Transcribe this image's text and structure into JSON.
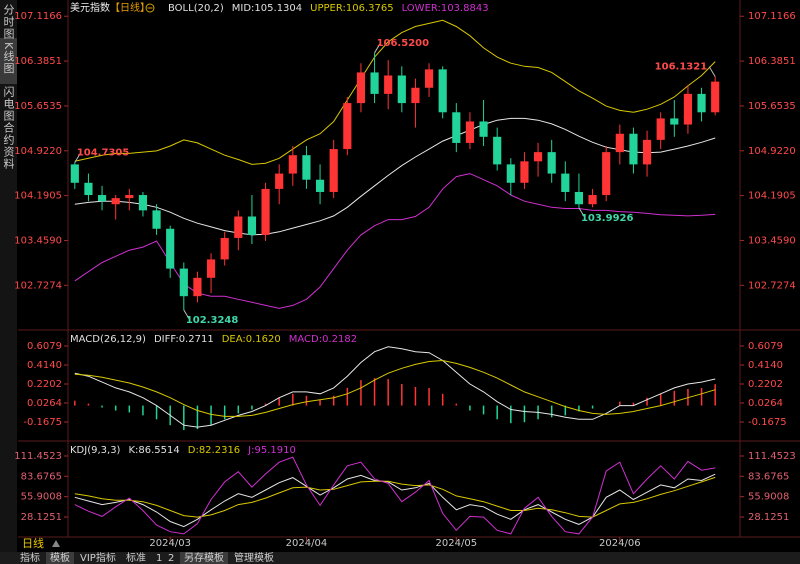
{
  "sidebar": [
    "分时图",
    "K线图",
    "闪电图",
    "合约资料"
  ],
  "footer": {
    "period": "日线",
    "tabs": [
      "指标",
      "模板",
      "VIP指标",
      "标准",
      "1",
      "2",
      "另存模板",
      "管理模板"
    ]
  },
  "chart_data": [
    {
      "type": "candlestick",
      "title": "美元指数",
      "period": "【日线】",
      "legend": [
        {
          "text": "BOLL(20,2)",
          "color": "#e0e0e0"
        },
        {
          "text": "MID:105.1304",
          "color": "#e0e0e0"
        },
        {
          "text": "UPPER:106.3765",
          "color": "#d8c800"
        },
        {
          "text": "LOWER:103.8843",
          "color": "#d030d0"
        }
      ],
      "up_color": "#ff3434",
      "down_color": "#22d39a",
      "ylim": [
        102.08,
        107.3
      ],
      "yticks": [
        107.1166,
        106.3851,
        105.6535,
        {
          "value": 104.922,
          "label": "104.9220"
        },
        104.1905,
        {
          "value": 103.459,
          "label": "103.4590"
        },
        102.7274
      ],
      "candles": [
        [
          104.7,
          104.7305,
          104.3,
          104.4
        ],
        [
          104.4,
          104.55,
          104.1,
          104.2
        ],
        [
          104.2,
          104.35,
          103.95,
          104.1
        ],
        [
          104.05,
          104.2,
          103.8,
          104.15
        ],
        [
          104.15,
          104.3,
          103.95,
          104.2
        ],
        [
          104.2,
          104.25,
          103.85,
          103.95
        ],
        [
          103.95,
          104.05,
          103.55,
          103.65
        ],
        [
          103.65,
          103.7,
          102.85,
          103.0
        ],
        [
          103.0,
          103.1,
          102.3248,
          102.55
        ],
        [
          102.55,
          102.95,
          102.45,
          102.85
        ],
        [
          102.85,
          103.25,
          102.6,
          103.15
        ],
        [
          103.15,
          103.6,
          103.05,
          103.5
        ],
        [
          103.5,
          103.95,
          103.3,
          103.85
        ],
        [
          103.85,
          104.2,
          103.4,
          103.55
        ],
        [
          103.55,
          104.4,
          103.45,
          104.3
        ],
        [
          104.3,
          104.7,
          104.05,
          104.55
        ],
        [
          104.55,
          105.0,
          104.35,
          104.85
        ],
        [
          104.85,
          105.0,
          104.3,
          104.45
        ],
        [
          104.45,
          104.7,
          104.05,
          104.25
        ],
        [
          104.25,
          105.1,
          104.15,
          104.95
        ],
        [
          104.95,
          105.8,
          104.85,
          105.7
        ],
        [
          105.7,
          106.35,
          105.55,
          106.2
        ],
        [
          106.2,
          106.52,
          105.7,
          105.85
        ],
        [
          105.85,
          106.4,
          105.6,
          106.15
        ],
        [
          106.15,
          106.3,
          105.55,
          105.7
        ],
        [
          105.7,
          106.1,
          105.3,
          105.95
        ],
        [
          105.95,
          106.35,
          105.8,
          106.25
        ],
        [
          106.25,
          106.3,
          105.45,
          105.55
        ],
        [
          105.55,
          105.7,
          104.9,
          105.05
        ],
        [
          105.05,
          105.55,
          104.95,
          105.4
        ],
        [
          105.4,
          105.75,
          105.0,
          105.15
        ],
        [
          105.15,
          105.3,
          104.6,
          104.7
        ],
        [
          104.7,
          104.8,
          104.2,
          104.4
        ],
        [
          104.4,
          104.9,
          104.3,
          104.75
        ],
        [
          104.75,
          105.05,
          104.5,
          104.9
        ],
        [
          104.9,
          105.1,
          104.4,
          104.55
        ],
        [
          104.55,
          104.75,
          104.1,
          104.25
        ],
        [
          104.25,
          104.55,
          103.9926,
          104.05
        ],
        [
          104.05,
          104.3,
          104.0,
          104.2
        ],
        [
          104.2,
          105.0,
          104.1,
          104.9
        ],
        [
          104.9,
          105.35,
          104.7,
          105.2
        ],
        [
          105.2,
          105.3,
          104.55,
          104.7
        ],
        [
          104.7,
          105.25,
          104.5,
          105.1
        ],
        [
          105.1,
          105.55,
          104.95,
          105.45
        ],
        [
          105.45,
          105.75,
          105.15,
          105.35
        ],
        [
          105.35,
          106.0,
          105.2,
          105.85
        ],
        [
          105.85,
          105.95,
          105.4,
          105.55
        ],
        [
          105.55,
          106.1321,
          105.5,
          106.05
        ]
      ],
      "series": [
        {
          "color": "#e6e6e6",
          "values": [
            104.05,
            104.08,
            104.1,
            104.1,
            104.08,
            104.05,
            104.0,
            103.92,
            103.82,
            103.74,
            103.68,
            103.62,
            103.58,
            103.55,
            103.56,
            103.6,
            103.66,
            103.72,
            103.78,
            103.86,
            104.0,
            104.18,
            104.35,
            104.52,
            104.68,
            104.82,
            104.95,
            105.08,
            105.17,
            105.26,
            105.35,
            105.42,
            105.45,
            105.45,
            105.42,
            105.36,
            105.27,
            105.16,
            105.06,
            104.98,
            104.94,
            104.9,
            104.89,
            104.9,
            104.95,
            105.0,
            105.06,
            105.1304
          ]
        },
        {
          "color": "#d8c800",
          "values": [
            104.75,
            104.8,
            104.85,
            104.88,
            104.88,
            104.9,
            104.92,
            105.0,
            105.1,
            105.05,
            104.95,
            104.85,
            104.78,
            104.7,
            104.72,
            104.8,
            104.95,
            105.1,
            105.2,
            105.4,
            105.75,
            106.1,
            106.45,
            106.7,
            106.85,
            106.95,
            107.0,
            107.05,
            106.95,
            106.8,
            106.6,
            106.45,
            106.35,
            106.3,
            106.28,
            106.2,
            106.05,
            105.9,
            105.78,
            105.65,
            105.58,
            105.55,
            105.6,
            105.68,
            105.8,
            105.98,
            106.15,
            106.3765
          ]
        },
        {
          "color": "#d030d0",
          "values": [
            102.8,
            102.95,
            103.1,
            103.2,
            103.3,
            103.35,
            103.45,
            103.1,
            102.75,
            102.6,
            102.55,
            102.55,
            102.5,
            102.45,
            102.4,
            102.35,
            102.4,
            102.5,
            102.7,
            103.0,
            103.3,
            103.55,
            103.7,
            103.8,
            103.8,
            103.85,
            104.0,
            104.3,
            104.5,
            104.55,
            104.45,
            104.35,
            104.2,
            104.1,
            104.05,
            104.0,
            103.98,
            103.98,
            103.95,
            103.95,
            103.93,
            103.92,
            103.9,
            103.88,
            103.87,
            103.86,
            103.87,
            103.8843
          ]
        }
      ],
      "annotations": [
        {
          "value": 104.7305,
          "label": "104.7305"
        },
        {
          "value": 102.3248,
          "label": "102.3248"
        },
        {
          "value": 106.52,
          "label": "106.5200"
        },
        {
          "value": 103.9926,
          "label": "103.9926"
        },
        {
          "value": 106.1321,
          "label": "106.1321"
        }
      ]
    },
    {
      "type": "macd",
      "legend": [
        {
          "text": "MACD(26,12,9)",
          "color": "#e0e0e0"
        },
        {
          "text": "DIFF:0.2711",
          "color": "#e0e0e0"
        },
        {
          "text": "DEA:0.1620",
          "color": "#d8c800"
        },
        {
          "text": "MACD:0.2182",
          "color": "#d030d0"
        }
      ],
      "up_color": "#ff3434",
      "down_color": "#22d39a",
      "ylim": [
        -0.3512,
        0.7508
      ],
      "yticks": [
        0.6079,
        {
          "value": 0.414,
          "label": "0.4140"
        },
        0.2202,
        0.0264,
        -0.1675
      ],
      "bars": [
        0.05,
        0.02,
        -0.02,
        -0.05,
        -0.07,
        -0.1,
        -0.14,
        -0.2,
        -0.25,
        -0.24,
        -0.2,
        -0.14,
        -0.08,
        -0.04,
        0.02,
        0.08,
        0.12,
        0.1,
        0.06,
        0.1,
        0.18,
        0.26,
        0.28,
        0.27,
        0.22,
        0.19,
        0.18,
        0.12,
        0.02,
        -0.05,
        -0.09,
        -0.14,
        -0.18,
        -0.17,
        -0.14,
        -0.12,
        -0.1,
        -0.06,
        -0.03,
        0.0,
        0.04,
        0.03,
        0.08,
        0.12,
        0.15,
        0.17,
        0.18,
        0.2182
      ],
      "series": [
        {
          "color": "#e6e6e6",
          "values": [
            0.33,
            0.3,
            0.24,
            0.18,
            0.14,
            0.08,
            0.0,
            -0.1,
            -0.2,
            -0.22,
            -0.2,
            -0.15,
            -0.1,
            -0.06,
            0.0,
            0.08,
            0.14,
            0.14,
            0.12,
            0.18,
            0.3,
            0.44,
            0.55,
            0.6,
            0.58,
            0.55,
            0.54,
            0.46,
            0.34,
            0.22,
            0.14,
            0.04,
            -0.04,
            -0.06,
            -0.07,
            -0.09,
            -0.12,
            -0.14,
            -0.14,
            -0.08,
            0.0,
            0.0,
            0.06,
            0.12,
            0.18,
            0.22,
            0.24,
            0.2711
          ]
        },
        {
          "color": "#d8c800",
          "values": [
            0.32,
            0.31,
            0.29,
            0.26,
            0.23,
            0.19,
            0.14,
            0.08,
            0.01,
            -0.05,
            -0.09,
            -0.11,
            -0.11,
            -0.1,
            -0.07,
            -0.03,
            0.01,
            0.04,
            0.06,
            0.08,
            0.12,
            0.18,
            0.26,
            0.33,
            0.38,
            0.42,
            0.45,
            0.46,
            0.43,
            0.39,
            0.34,
            0.28,
            0.21,
            0.14,
            0.09,
            0.04,
            -0.01,
            -0.05,
            -0.08,
            -0.09,
            -0.08,
            -0.06,
            -0.03,
            0.0,
            0.04,
            0.08,
            0.12,
            0.162
          ]
        }
      ]
    },
    {
      "type": "kdj",
      "legend": [
        {
          "text": "KDJ(9,3,3)",
          "color": "#e0e0e0"
        },
        {
          "text": "K:86.5514",
          "color": "#e0e0e0"
        },
        {
          "text": "D:82.2316",
          "color": "#d8c800"
        },
        {
          "text": "J:95.1910",
          "color": "#d030d0"
        }
      ],
      "ylim": [
        0.8,
        129.2
      ],
      "yticks": [
        111.4523,
        83.6765,
        55.9008,
        28.1251
      ],
      "categories": [
        null,
        null,
        null,
        null,
        null,
        null,
        null,
        "2024/03",
        null,
        null,
        null,
        null,
        null,
        null,
        null,
        null,
        null,
        "2024/04",
        null,
        null,
        null,
        null,
        null,
        null,
        null,
        null,
        null,
        null,
        "2024/05",
        null,
        null,
        null,
        null,
        null,
        null,
        null,
        null,
        null,
        null,
        null,
        "2024/06",
        null,
        null,
        null,
        null,
        null,
        null,
        null
      ],
      "series": [
        {
          "color": "#e6e6e6",
          "values": [
            55,
            50,
            45,
            48,
            52,
            45,
            35,
            22,
            15,
            25,
            38,
            50,
            60,
            55,
            65,
            75,
            82,
            70,
            58,
            68,
            80,
            85,
            78,
            76,
            65,
            68,
            74,
            55,
            38,
            45,
            42,
            32,
            25,
            38,
            45,
            35,
            25,
            18,
            28,
            55,
            65,
            52,
            62,
            72,
            68,
            80,
            78,
            86.5514
          ]
        },
        {
          "color": "#d8c800",
          "values": [
            60,
            57,
            53,
            51,
            51,
            49,
            44,
            37,
            30,
            28,
            31,
            37,
            45,
            48,
            54,
            61,
            68,
            69,
            65,
            66,
            71,
            76,
            77,
            77,
            73,
            71,
            72,
            66,
            57,
            53,
            49,
            43,
            37,
            37,
            40,
            38,
            34,
            29,
            28,
            37,
            46,
            48,
            53,
            59,
            64,
            70,
            76,
            82.2316
          ]
        },
        {
          "color": "#d030d0",
          "values": [
            45,
            36,
            29,
            42,
            54,
            37,
            17,
            8,
            5,
            19,
            52,
            76,
            90,
            69,
            87,
            103,
            110,
            72,
            44,
            72,
            98,
            103,
            80,
            74,
            49,
            62,
            78,
            33,
            10,
            29,
            28,
            10,
            5,
            40,
            55,
            29,
            8,
            5,
            28,
            91,
            103,
            60,
            80,
            98,
            80,
            104,
            92,
            95.191
          ]
        }
      ]
    }
  ]
}
